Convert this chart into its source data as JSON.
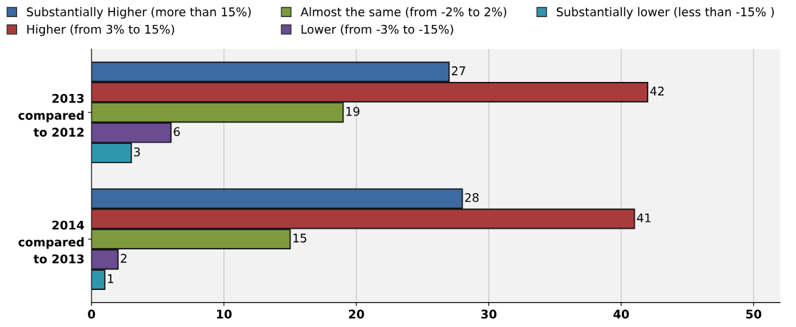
{
  "chart_data": {
    "type": "bar",
    "orientation": "horizontal",
    "categories": [
      "2013\ncompared\nto 2012",
      "2014\ncompared\nto 2013"
    ],
    "series": [
      {
        "name": "Substantially Higher (more than 15%)",
        "color": "#3d6aa3",
        "values": [
          27,
          28
        ]
      },
      {
        "name": "Higher (from 3% to 15%)",
        "color": "#a83c3c",
        "values": [
          42,
          41
        ]
      },
      {
        "name": "Almost the same (from -2% to 2%)",
        "color": "#7d9b3c",
        "values": [
          19,
          15
        ]
      },
      {
        "name": "Lower (from -3% to -15%)",
        "color": "#6a4c93",
        "values": [
          6,
          2
        ]
      },
      {
        "name": "Substantially lower (less than -15% )",
        "color": "#2e97ad",
        "values": [
          3,
          1
        ]
      }
    ],
    "xlim": [
      0,
      52
    ],
    "xticks": [
      0,
      10,
      20,
      30,
      40,
      50
    ],
    "grid": "x",
    "legend": "top",
    "data_labels": true
  }
}
